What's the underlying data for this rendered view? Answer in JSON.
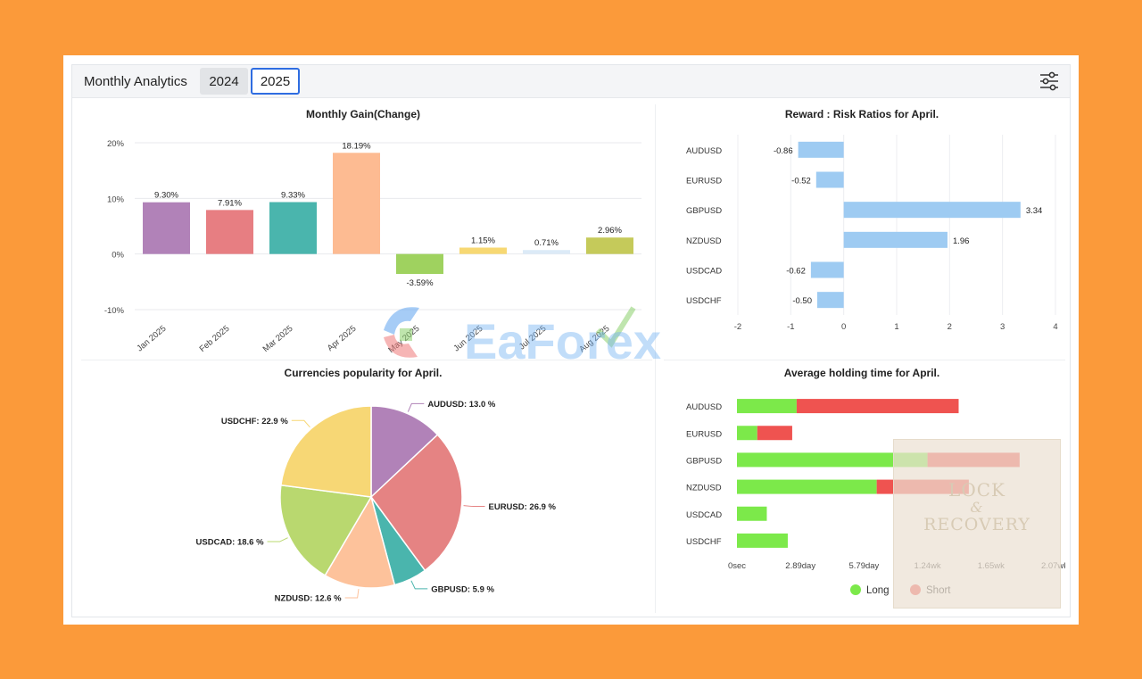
{
  "header": {
    "title": "Monthly Analytics",
    "tabs": [
      {
        "label": "2024",
        "active": false
      },
      {
        "label": "2025",
        "active": true
      }
    ],
    "filter_icon": "sliders-icon"
  },
  "colors": {
    "accent": "#2f6de1",
    "background": "#fb9a3a",
    "long": "#7ce94a",
    "short": "#ef5350",
    "rr_bar": "#9ecbf2"
  },
  "watermark": {
    "text": "EaForex"
  },
  "overlay": {
    "line1": "LOCK",
    "line2": "&",
    "line3": "RECOVERY"
  },
  "chart_data": [
    {
      "id": "gain",
      "type": "bar",
      "title": "Monthly Gain(Change)",
      "categories": [
        "Jan 2025",
        "Feb 2025",
        "Mar 2025",
        "Apr 2025",
        "May 2025",
        "Jun 2025",
        "Jul 2025",
        "Aug 2025"
      ],
      "values": [
        9.3,
        7.91,
        9.33,
        18.19,
        -3.59,
        1.15,
        0.71,
        2.96
      ],
      "labels": [
        "9.30%",
        "7.91%",
        "9.33%",
        "18.19%",
        "-3.59%",
        "1.15%",
        "0.71%",
        "2.96%"
      ],
      "colors": [
        "#b182b8",
        "#e77e82",
        "#4ab5ad",
        "#fdbb92",
        "#9fd25f",
        "#f7d873",
        "#dceaf7",
        "#c5ca5a"
      ],
      "yticks": [
        "20%",
        "10%",
        "0%",
        "-10%"
      ],
      "ylim": [
        -10,
        20
      ],
      "grid": true
    },
    {
      "id": "rr",
      "type": "bar",
      "orientation": "horizontal",
      "title": "Reward : Risk Ratios for April.",
      "categories": [
        "AUDUSD",
        "EURUSD",
        "GBPUSD",
        "NZDUSD",
        "USDCAD",
        "USDCHF"
      ],
      "values": [
        -0.86,
        -0.52,
        3.34,
        1.96,
        -0.62,
        -0.5
      ],
      "labels": [
        "-0.86",
        "-0.52",
        "3.34",
        "1.96",
        "-0.62",
        "-0.50"
      ],
      "xticks": [
        "-2",
        "-1",
        "0",
        "1",
        "2",
        "3",
        "4"
      ],
      "xlim": [
        -2,
        4
      ],
      "grid": true
    },
    {
      "id": "pop",
      "type": "pie",
      "title": "Currencies popularity for April.",
      "categories": [
        "AUDUSD",
        "EURUSD",
        "GBPUSD",
        "NZDUSD",
        "USDCAD",
        "USDCHF"
      ],
      "values": [
        13.0,
        26.9,
        5.9,
        12.6,
        18.6,
        22.9
      ],
      "labels": [
        "AUDUSD: 13.0 %",
        "EURUSD: 26.9 %",
        "GBPUSD: 5.9 %",
        "NZDUSD: 12.6 %",
        "USDCAD: 18.6 %",
        "USDCHF: 22.9 %"
      ],
      "colors": [
        "#b182b8",
        "#e58383",
        "#4ab5ad",
        "#fdc29b",
        "#b9d86f",
        "#f7d775"
      ]
    },
    {
      "id": "hold",
      "type": "bar",
      "orientation": "horizontal",
      "stacked": true,
      "title": "Average holding time for April.",
      "categories": [
        "AUDUSD",
        "EURUSD",
        "GBPUSD",
        "NZDUSD",
        "USDCAD",
        "USDCHF"
      ],
      "series": [
        {
          "name": "Long",
          "values": [
            0.94,
            0.32,
            3.0,
            2.2,
            0.47,
            0.8
          ]
        },
        {
          "name": "Short",
          "values": [
            2.55,
            0.55,
            1.45,
            1.45,
            0,
            0
          ]
        }
      ],
      "xticks": [
        "0sec",
        "2.89day",
        "5.79day",
        "1.24wk",
        "1.65wk",
        "2.07wk"
      ],
      "xlim": [
        0,
        5.79
      ],
      "x_unit": "tick index (each tick = 2.89 day)",
      "legend": "bottom"
    }
  ]
}
